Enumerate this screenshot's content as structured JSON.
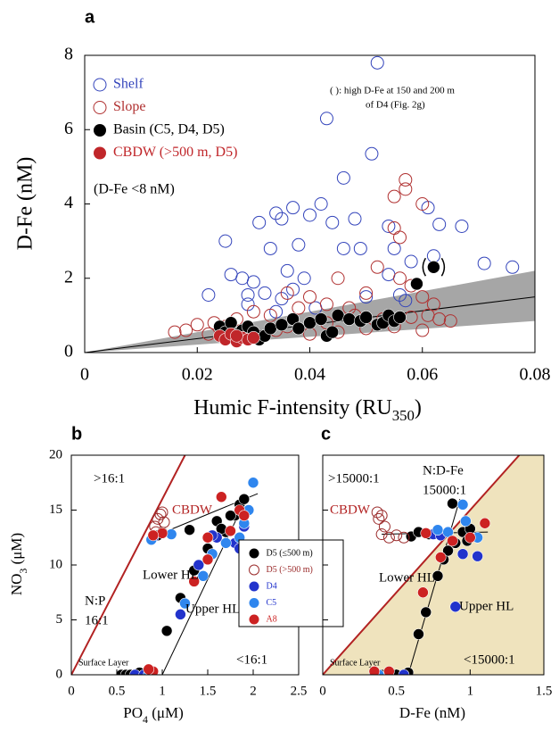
{
  "chart_data": [
    {
      "type": "scatter",
      "panel_label": "a",
      "y_label": "D-Fe (nM)",
      "x_label": {
        "text": "Humic F-intensity (RU",
        "sub": "350",
        "end": ")"
      },
      "xlim": [
        0,
        0.08
      ],
      "ylim": [
        0,
        8
      ],
      "xticks": [
        0,
        0.02,
        0.04,
        0.06,
        0.08
      ],
      "yticks": [
        0,
        2,
        4,
        6,
        8
      ],
      "band": {
        "x": [
          0,
          0.08
        ],
        "upper": [
          0,
          2.2
        ],
        "lower": [
          0,
          0.85
        ],
        "color": "#a6a6a6"
      },
      "fit_lines": [
        {
          "x": [
            0,
            0.08
          ],
          "y": [
            0,
            1.5
          ]
        }
      ],
      "annotations": [
        "(D-Fe <8 nM)",
        "(   ): high D-Fe at 150 and 200 m",
        "of D4 (Fig. 2g)"
      ],
      "series": [
        {
          "name": "Shelf",
          "color": "#3344bb",
          "open": true,
          "x": [
            0.052,
            0.043,
            0.051,
            0.046,
            0.042,
            0.037,
            0.034,
            0.031,
            0.035,
            0.048,
            0.044,
            0.04,
            0.054,
            0.061,
            0.063,
            0.067,
            0.025,
            0.033,
            0.038,
            0.046,
            0.049,
            0.055,
            0.058,
            0.062,
            0.071,
            0.076,
            0.022,
            0.026,
            0.028,
            0.03,
            0.036,
            0.039,
            0.029,
            0.032,
            0.035,
            0.041,
            0.05,
            0.056,
            0.057,
            0.034,
            0.029,
            0.054,
            0.037
          ],
          "values": [
            7.8,
            6.3,
            5.35,
            4.7,
            4.0,
            3.9,
            3.75,
            3.5,
            3.6,
            3.6,
            3.5,
            3.7,
            3.4,
            3.9,
            3.45,
            3.4,
            3.0,
            2.8,
            2.9,
            2.8,
            2.8,
            2.8,
            2.45,
            2.6,
            2.4,
            2.3,
            1.55,
            2.1,
            2.0,
            1.9,
            2.2,
            2.0,
            1.55,
            1.6,
            1.45,
            1.2,
            1.5,
            1.55,
            1.4,
            1.1,
            1.3,
            2.1,
            1.7
          ]
        },
        {
          "name": "Slope",
          "color": "#b03030",
          "open": true,
          "x": [
            0.057,
            0.057,
            0.055,
            0.06,
            0.055,
            0.056,
            0.045,
            0.052,
            0.056,
            0.058,
            0.06,
            0.062,
            0.05,
            0.047,
            0.043,
            0.04,
            0.036,
            0.038,
            0.033,
            0.03,
            0.027,
            0.025,
            0.023,
            0.02,
            0.018,
            0.016,
            0.022,
            0.03,
            0.034,
            0.04,
            0.045,
            0.05,
            0.055,
            0.058,
            0.061,
            0.063,
            0.065,
            0.06,
            0.053,
            0.036,
            0.043,
            0.028,
            0.048
          ],
          "values": [
            4.65,
            4.4,
            4.2,
            4.0,
            3.35,
            3.1,
            2.0,
            2.3,
            2.0,
            1.8,
            1.5,
            1.3,
            1.6,
            1.2,
            1.3,
            1.5,
            1.6,
            1.2,
            1.0,
            1.1,
            0.9,
            0.7,
            0.8,
            0.75,
            0.6,
            0.55,
            0.5,
            0.45,
            0.6,
            0.5,
            0.55,
            0.65,
            0.7,
            0.95,
            1.0,
            0.9,
            0.85,
            0.6,
            0.9,
            0.7,
            0.8,
            0.55,
            1.0
          ]
        },
        {
          "name": "Basin (C5, D4, D5)",
          "color": "#000000",
          "open": false,
          "x": [
            0.024,
            0.025,
            0.026,
            0.027,
            0.028,
            0.029,
            0.03,
            0.031,
            0.032,
            0.033,
            0.035,
            0.037,
            0.038,
            0.04,
            0.042,
            0.043,
            0.044,
            0.045,
            0.047,
            0.049,
            0.05,
            0.052,
            0.053,
            0.054,
            0.055,
            0.056,
            0.059,
            0.062
          ],
          "values": [
            0.7,
            0.55,
            0.8,
            0.5,
            0.6,
            0.7,
            0.55,
            0.35,
            0.45,
            0.65,
            0.75,
            0.9,
            0.65,
            0.8,
            0.9,
            0.45,
            0.55,
            1.0,
            0.9,
            0.85,
            0.95,
            0.75,
            0.8,
            1.0,
            0.85,
            0.95,
            1.85,
            2.3
          ]
        },
        {
          "name": "CBDW (>500 m, D5)",
          "color": "#c0262a",
          "open": false,
          "x": [
            0.024,
            0.025,
            0.026,
            0.027,
            0.028,
            0.029,
            0.027,
            0.03
          ],
          "values": [
            0.45,
            0.35,
            0.5,
            0.3,
            0.4,
            0.35,
            0.45,
            0.4
          ]
        }
      ]
    },
    {
      "type": "scatter",
      "panel_label": "b",
      "y_label": {
        "text": "NO",
        "sub": "3",
        "end": " (μM)"
      },
      "x_label": {
        "text": "PO",
        "sub": "4",
        "end": " (μM)"
      },
      "xlim": [
        0,
        2.5
      ],
      "ylim": [
        0,
        20
      ],
      "xticks": [
        0,
        0.5,
        1,
        1.5,
        2,
        2.5
      ],
      "yticks": [
        0,
        5,
        10,
        15,
        20
      ],
      "ratio_line": {
        "x": [
          0,
          1.25
        ],
        "y": [
          0,
          20
        ],
        "color": "#b22222"
      },
      "fit_lines": [
        {
          "x": [
            1.0,
            1.92
          ],
          "y": [
            0,
            16
          ]
        },
        {
          "x": [
            0.85,
            2.05
          ],
          "y": [
            12.4,
            16.5
          ]
        },
        {
          "x": [
            0.5,
            0.9
          ],
          "y": [
            0,
            0
          ]
        }
      ],
      "annotations": [
        ">16:1",
        "CBDW",
        "Lower HL",
        "N:P",
        "16:1",
        "Upper HL",
        "Surface Layer",
        "<16:1"
      ],
      "series": [
        {
          "name": "D5 (≤500 m)",
          "color": "#000000",
          "open": false,
          "x": [
            0.55,
            0.6,
            0.65,
            0.75,
            1.05,
            1.2,
            1.35,
            1.5,
            1.7,
            1.8,
            1.85,
            1.6,
            1.3,
            1.0,
            0.95,
            1.9,
            1.75,
            1.65
          ],
          "values": [
            0,
            0,
            0,
            0.2,
            4,
            7,
            9.5,
            11.5,
            13,
            14.5,
            15.5,
            14,
            13.2,
            13,
            12.7,
            16,
            14.5,
            13.3
          ]
        },
        {
          "name": "D5 (>500 m)",
          "color": "#9a2a2a",
          "open": true,
          "x": [
            0.92,
            0.95,
            0.98,
            1.0,
            1.02,
            0.93
          ],
          "values": [
            13.5,
            14.2,
            14.6,
            14.8,
            13.9,
            13.0
          ]
        },
        {
          "name": "D4",
          "color": "#2233cc",
          "open": false,
          "x": [
            0.7,
            0.8,
            1.2,
            1.4,
            1.6,
            1.8,
            1.85,
            0.9,
            1.55,
            1.9
          ],
          "values": [
            0,
            0,
            5.5,
            10,
            12.5,
            12,
            11.5,
            12.5,
            12.7,
            13.5
          ]
        },
        {
          "name": "C5",
          "color": "#2f86ee",
          "open": false,
          "x": [
            0.85,
            1.25,
            1.45,
            1.55,
            1.7,
            1.85,
            1.9,
            2.0,
            1.1,
            0.88,
            1.95
          ],
          "values": [
            0,
            6.5,
            9,
            11,
            12,
            12.5,
            13.8,
            17.5,
            12.8,
            12.3,
            15
          ]
        },
        {
          "name": "A8",
          "color": "#cc2222",
          "open": false,
          "x": [
            0.9,
            0.85,
            1.35,
            1.5,
            1.5,
            1.75,
            1.85,
            1.65,
            1.9,
            1.0,
            0.9
          ],
          "values": [
            0.3,
            0.5,
            8.5,
            10.5,
            12.5,
            13.1,
            15,
            16.2,
            14.5,
            12.9,
            12.7
          ]
        }
      ]
    },
    {
      "type": "scatter",
      "panel_label": "c",
      "x_label": "D-Fe (nM)",
      "legend": false,
      "show_ytick_labels": false,
      "xlim": [
        0,
        1.5
      ],
      "ylim": [
        0,
        20
      ],
      "xticks": [
        0,
        0.5,
        1,
        1.5
      ],
      "yticks": [
        0,
        5,
        10,
        15,
        20
      ],
      "ratio_line": {
        "x": [
          0,
          1.333
        ],
        "y": [
          0,
          20
        ],
        "color": "#b22222"
      },
      "shade_color": "#efe3bd",
      "fit_lines": [
        {
          "x": [
            0.58,
            0.93
          ],
          "y": [
            0,
            16
          ]
        },
        {
          "x": [
            0.4,
            1.12
          ],
          "y": [
            12.8,
            13.0
          ]
        },
        {
          "x": [
            0.35,
            0.6
          ],
          "y": [
            0,
            0
          ]
        }
      ],
      "annotations": [
        ">15000:1",
        "N:D-Fe",
        "15000:1",
        "CBDW",
        "Lower HL",
        "Upper HL",
        "Surface Layer",
        "<15000:1"
      ],
      "series": [
        {
          "color": "#000000",
          "open": false,
          "x": [
            0.4,
            0.45,
            0.5,
            0.58,
            0.65,
            0.7,
            0.78,
            0.82,
            0.85,
            0.9,
            0.88,
            0.95,
            1.0,
            0.72,
            0.6,
            0.65,
            0.98
          ],
          "values": [
            0,
            0,
            0,
            0.2,
            3.7,
            5.7,
            9,
            10.5,
            11.3,
            12,
            15.6,
            13,
            13.3,
            12.8,
            12.6,
            13,
            12.2
          ]
        },
        {
          "color": "#9a2a2a",
          "open": true,
          "x": [
            0.37,
            0.38,
            0.4,
            0.42,
            0.4,
            0.45,
            0.5,
            0.55
          ],
          "values": [
            14.8,
            14.2,
            14.5,
            13.5,
            12.8,
            12.5,
            12.7,
            12.5
          ]
        },
        {
          "color": "#2233cc",
          "open": false,
          "x": [
            0.35,
            0.55,
            0.9,
            0.95,
            1.05,
            0.75,
            0.8
          ],
          "values": [
            0,
            0,
            6.2,
            11,
            10.8,
            12.8,
            12.7
          ]
        },
        {
          "color": "#2f86ee",
          "open": false,
          "x": [
            0.38,
            0.95,
            0.97,
            0.85,
            0.78,
            1.05
          ],
          "values": [
            0,
            15.5,
            14,
            13,
            13.2,
            12.5
          ]
        },
        {
          "color": "#cc2222",
          "open": false,
          "x": [
            0.35,
            0.45,
            0.68,
            0.8,
            0.88,
            1.1,
            1.0,
            0.7
          ],
          "values": [
            0.3,
            0.3,
            7.5,
            10.7,
            12.2,
            13.8,
            12.5,
            12.9
          ]
        }
      ]
    }
  ]
}
